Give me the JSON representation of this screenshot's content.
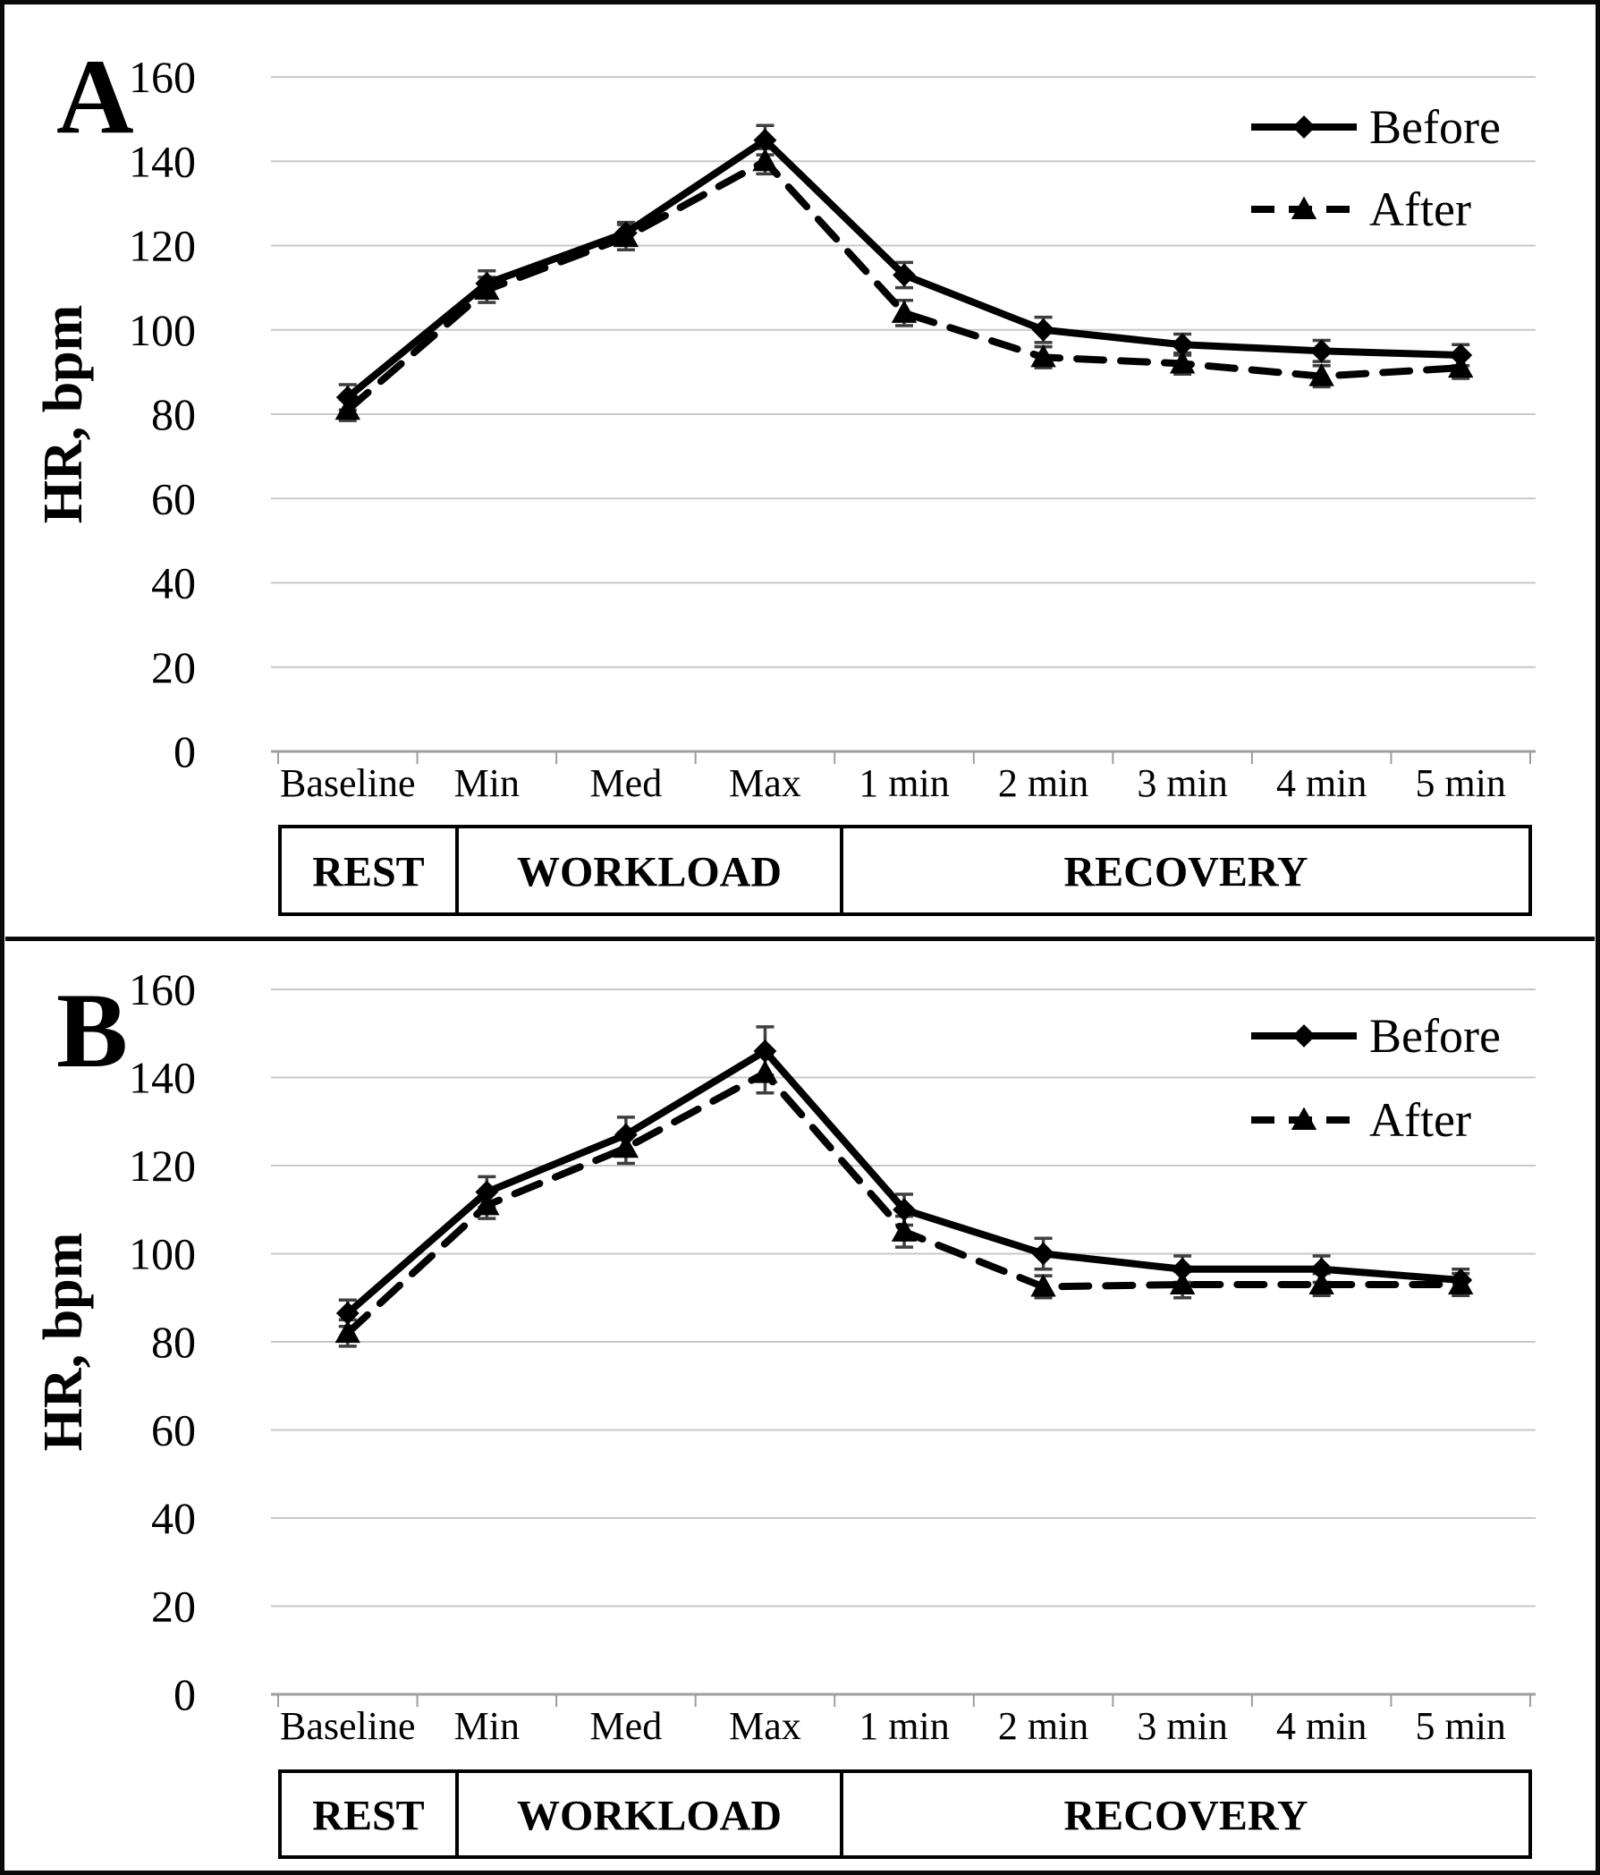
{
  "figure": {
    "background": "#ffffff",
    "border_color": "#0a0a0a"
  },
  "colors": {
    "series_line": "#000000",
    "gridline": "#c8c8c8",
    "axis_line": "#9e9e9e",
    "error_bar": "#3f3f3f",
    "phase_box_border": "#000000",
    "text": "#000000"
  },
  "chart_data": [
    {
      "type": "line",
      "panel_label": "A",
      "title": "",
      "xlabel": "",
      "ylabel": "HR, bpm",
      "ylim": [
        0,
        160
      ],
      "ytick_step": 20,
      "yticks": [
        160,
        140,
        120,
        100,
        80,
        60,
        40,
        20,
        0
      ],
      "grid": true,
      "legend_position": "top-right",
      "categories": [
        "Baseline",
        "Min",
        "Med",
        "Max",
        "1 min",
        "2 min",
        "3 min",
        "4 min",
        "5 min"
      ],
      "series": [
        {
          "name": "Before",
          "line": "solid",
          "marker": "diamond",
          "values": [
            84,
            111,
            123,
            145,
            113,
            100,
            96.5,
            95,
            94
          ],
          "errors": [
            3,
            3,
            2.5,
            3.5,
            3,
            3,
            2.5,
            2.5,
            2.5
          ]
        },
        {
          "name": "After",
          "line": "dashed",
          "marker": "triangle",
          "values": [
            81,
            109.5,
            122,
            140,
            104,
            93.5,
            92,
            89,
            91
          ],
          "errors": [
            2.5,
            3,
            3,
            3,
            3,
            2.5,
            2.5,
            2.5,
            2.5
          ]
        }
      ],
      "phase_bands": [
        {
          "label": "REST",
          "categories": [
            "Baseline"
          ]
        },
        {
          "label": "WORKLOAD",
          "categories": [
            "Min",
            "Med",
            "Max"
          ]
        },
        {
          "label": "RECOVERY",
          "categories": [
            "1 min",
            "2 min",
            "3 min",
            "4 min",
            "5 min"
          ]
        }
      ]
    },
    {
      "type": "line",
      "panel_label": "B",
      "title": "",
      "xlabel": "",
      "ylabel": "HR, bpm",
      "ylim": [
        0,
        160
      ],
      "ytick_step": 20,
      "yticks": [
        160,
        140,
        120,
        100,
        80,
        60,
        40,
        20,
        0
      ],
      "grid": true,
      "legend_position": "top-right",
      "categories": [
        "Baseline",
        "Min",
        "Med",
        "Max",
        "1 min",
        "2 min",
        "3 min",
        "4 min",
        "5 min"
      ],
      "series": [
        {
          "name": "Before",
          "line": "solid",
          "marker": "diamond",
          "values": [
            86.5,
            114,
            127,
            146,
            110,
            100,
            96.5,
            96.5,
            94
          ],
          "errors": [
            3,
            3.5,
            4,
            5.5,
            3.5,
            3.5,
            3,
            3,
            2.5
          ]
        },
        {
          "name": "After",
          "line": "dashed",
          "marker": "triangle",
          "values": [
            82,
            111,
            124,
            141,
            105,
            92.5,
            93,
            93,
            93
          ],
          "errors": [
            3,
            3,
            3.5,
            4.5,
            3.5,
            2.5,
            3,
            2.5,
            2.5
          ]
        }
      ],
      "phase_bands": [
        {
          "label": "REST",
          "categories": [
            "Baseline"
          ]
        },
        {
          "label": "WORKLOAD",
          "categories": [
            "Min",
            "Med",
            "Max"
          ]
        },
        {
          "label": "RECOVERY",
          "categories": [
            "1 min",
            "2 min",
            "3 min",
            "4 min",
            "5 min"
          ]
        }
      ]
    }
  ]
}
